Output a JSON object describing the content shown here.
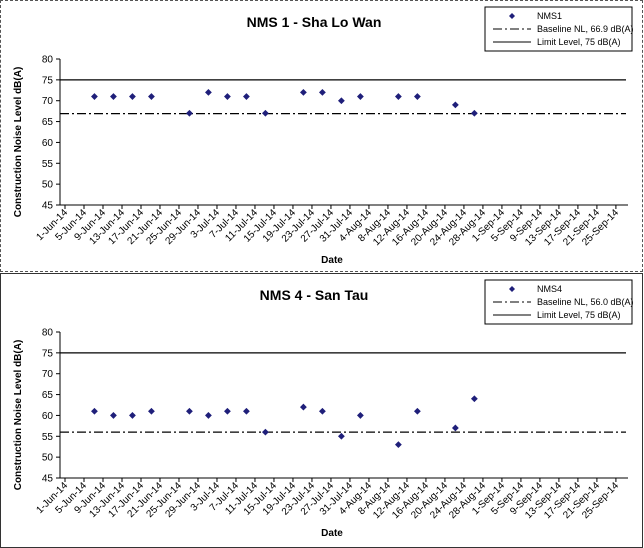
{
  "chart_data": [
    {
      "type": "scatter",
      "title": "NMS 1 - Sha Lo Wan",
      "xlabel": "Date",
      "ylabel": "Construction Noise Level  dB(A)",
      "ylim": [
        45,
        80
      ],
      "yticks": [
        45,
        50,
        55,
        60,
        65,
        70,
        75,
        80
      ],
      "categories": [
        "1-Jun-14",
        "5-Jun-14",
        "9-Jun-14",
        "13-Jun-14",
        "17-Jun-14",
        "21-Jun-14",
        "25-Jun-14",
        "29-Jun-14",
        "3-Jul-14",
        "7-Jul-14",
        "11-Jul-14",
        "15-Jul-14",
        "19-Jul-14",
        "23-Jul-14",
        "27-Jul-14",
        "31-Jul-14",
        "4-Aug-14",
        "8-Aug-14",
        "12-Aug-14",
        "16-Aug-14",
        "20-Aug-14",
        "24-Aug-14",
        "28-Aug-14",
        "1-Sep-14",
        "5-Sep-14",
        "9-Sep-14",
        "13-Sep-14",
        "17-Sep-14",
        "21-Sep-14",
        "25-Sep-14"
      ],
      "series": [
        {
          "name": "NMS1",
          "kind": "points",
          "color": "#1f1f7a",
          "points": [
            {
              "x": "5-Jun-14",
              "y": 71
            },
            {
              "x": "9-Jun-14",
              "y": 71
            },
            {
              "x": "13-Jun-14",
              "y": 71
            },
            {
              "x": "17-Jun-14",
              "y": 71
            },
            {
              "x": "25-Jun-14",
              "y": 67
            },
            {
              "x": "29-Jun-14",
              "y": 72
            },
            {
              "x": "3-Jul-14",
              "y": 71
            },
            {
              "x": "7-Jul-14",
              "y": 71
            },
            {
              "x": "11-Jul-14",
              "y": 67
            },
            {
              "x": "19-Jul-14",
              "y": 72
            },
            {
              "x": "23-Jul-14",
              "y": 72
            },
            {
              "x": "27-Jul-14",
              "y": 70
            },
            {
              "x": "31-Jul-14",
              "y": 71
            },
            {
              "x": "8-Aug-14",
              "y": 71
            },
            {
              "x": "12-Aug-14",
              "y": 71
            },
            {
              "x": "20-Aug-14",
              "y": 69
            },
            {
              "x": "24-Aug-14",
              "y": 67
            }
          ]
        },
        {
          "name": "Baseline NL, 66.9 dB(A)",
          "kind": "dashdot",
          "value": 66.9,
          "color": "#000000"
        },
        {
          "name": "Limit Level, 75 dB(A)",
          "kind": "solid",
          "value": 75,
          "color": "#000000"
        }
      ],
      "legend": "top-right",
      "grid": false
    },
    {
      "type": "scatter",
      "title": "NMS 4 - San Tau",
      "xlabel": "Date",
      "ylabel": "Construction Noise Level  dB(A)",
      "ylim": [
        45,
        80
      ],
      "yticks": [
        45,
        50,
        55,
        60,
        65,
        70,
        75,
        80
      ],
      "categories": [
        "1-Jun-14",
        "5-Jun-14",
        "9-Jun-14",
        "13-Jun-14",
        "17-Jun-14",
        "21-Jun-14",
        "25-Jun-14",
        "29-Jun-14",
        "3-Jul-14",
        "7-Jul-14",
        "11-Jul-14",
        "15-Jul-14",
        "19-Jul-14",
        "23-Jul-14",
        "27-Jul-14",
        "31-Jul-14",
        "4-Aug-14",
        "8-Aug-14",
        "12-Aug-14",
        "16-Aug-14",
        "20-Aug-14",
        "24-Aug-14",
        "28-Aug-14",
        "1-Sep-14",
        "5-Sep-14",
        "9-Sep-14",
        "13-Sep-14",
        "17-Sep-14",
        "21-Sep-14",
        "25-Sep-14"
      ],
      "series": [
        {
          "name": "NMS4",
          "kind": "points",
          "color": "#1f1f7a",
          "points": [
            {
              "x": "5-Jun-14",
              "y": 61
            },
            {
              "x": "9-Jun-14",
              "y": 60
            },
            {
              "x": "13-Jun-14",
              "y": 60
            },
            {
              "x": "17-Jun-14",
              "y": 61
            },
            {
              "x": "25-Jun-14",
              "y": 61
            },
            {
              "x": "29-Jun-14",
              "y": 60
            },
            {
              "x": "3-Jul-14",
              "y": 61
            },
            {
              "x": "7-Jul-14",
              "y": 61
            },
            {
              "x": "11-Jul-14",
              "y": 56
            },
            {
              "x": "19-Jul-14",
              "y": 62
            },
            {
              "x": "23-Jul-14",
              "y": 61
            },
            {
              "x": "27-Jul-14",
              "y": 55
            },
            {
              "x": "31-Jul-14",
              "y": 60
            },
            {
              "x": "8-Aug-14",
              "y": 53
            },
            {
              "x": "12-Aug-14",
              "y": 61
            },
            {
              "x": "20-Aug-14",
              "y": 57
            },
            {
              "x": "24-Aug-14",
              "y": 64
            }
          ]
        },
        {
          "name": "Baseline NL, 56.0 dB(A)",
          "kind": "dashdot",
          "value": 56.0,
          "color": "#000000"
        },
        {
          "name": "Limit Level, 75 dB(A)",
          "kind": "solid",
          "value": 75,
          "color": "#000000"
        }
      ],
      "legend": "top-right",
      "grid": false
    }
  ]
}
